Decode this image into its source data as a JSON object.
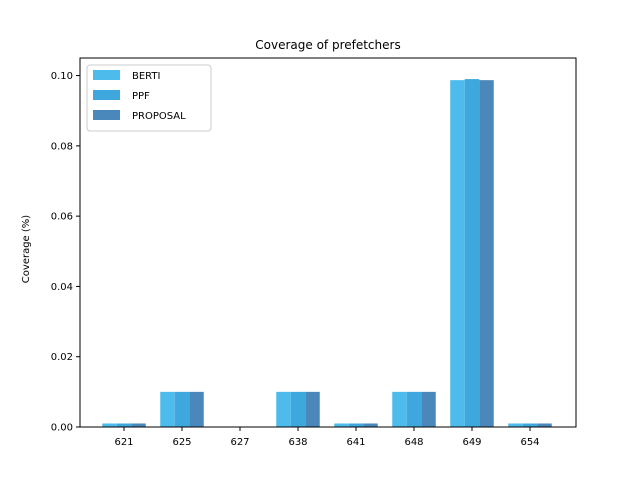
{
  "chart_data": {
    "type": "bar",
    "title": "Coverage of prefetchers",
    "xlabel": "",
    "ylabel": "Coverage (%)",
    "categories": [
      "621",
      "625",
      "627",
      "638",
      "641",
      "648",
      "649",
      "654"
    ],
    "series": [
      {
        "name": "BERTI",
        "color": "#4dbbeb",
        "values": [
          0.001,
          0.01,
          0.0,
          0.01,
          0.001,
          0.01,
          0.0987,
          0.001
        ]
      },
      {
        "name": "PPF",
        "color": "#3ea7dd",
        "values": [
          0.001,
          0.01,
          0.0,
          0.01,
          0.001,
          0.01,
          0.099,
          0.001
        ]
      },
      {
        "name": "PROPOSAL",
        "color": "#4a88bb",
        "values": [
          0.001,
          0.01,
          0.0,
          0.01,
          0.001,
          0.01,
          0.0987,
          0.001
        ]
      }
    ],
    "ylim": [
      0,
      0.105
    ],
    "yticks": [
      "0.00",
      "0.02",
      "0.04",
      "0.06",
      "0.08",
      "0.10"
    ],
    "grid": false,
    "legend_position": "top-left"
  }
}
